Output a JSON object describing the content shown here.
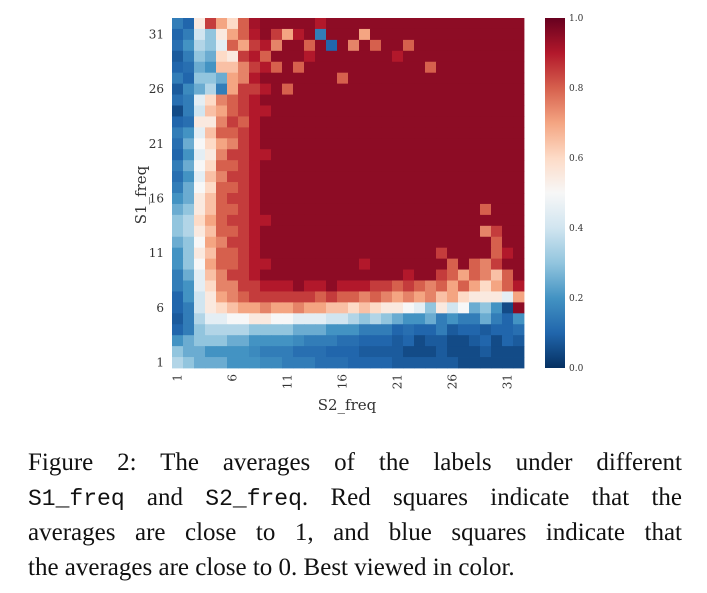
{
  "chart_data": {
    "type": "heatmap",
    "xlabel": "S2_freq",
    "ylabel": "S1_freq",
    "x_range": [
      1,
      32
    ],
    "y_range": [
      1,
      32
    ],
    "x_ticks": [
      "1",
      "6",
      "11",
      "16",
      "21",
      "26",
      "31"
    ],
    "y_ticks": [
      "1",
      "6",
      "11",
      "16",
      "21",
      "26",
      "31"
    ],
    "colorbar_ticks": [
      "0.0",
      "0.2",
      "0.4",
      "0.6",
      "0.8",
      "1.0"
    ],
    "value_range": [
      0.0,
      1.0
    ],
    "colormap": "RdBu_r",
    "grid": false,
    "colorbar_position": "right",
    "description_of_pattern": "",
    "rows_top_to_bottom": [
      [
        0.15,
        0.1,
        0.55,
        0.85,
        0.7,
        0.6,
        0.8,
        0.92,
        0.95,
        0.95,
        0.95,
        0.95,
        0.95,
        0.9,
        0.95,
        0.95,
        0.95,
        0.95,
        0.95,
        0.95,
        0.95,
        0.95,
        0.95,
        0.95,
        0.95,
        0.95,
        0.95,
        0.95,
        0.95,
        0.95,
        0.95,
        0.95
      ],
      [
        0.1,
        0.15,
        0.4,
        0.3,
        0.55,
        0.7,
        0.8,
        0.9,
        0.95,
        0.85,
        0.7,
        0.9,
        0.95,
        0.15,
        0.95,
        0.95,
        0.95,
        0.7,
        0.95,
        0.95,
        0.95,
        0.95,
        0.95,
        0.95,
        0.95,
        0.95,
        0.95,
        0.95,
        0.95,
        0.95,
        0.95,
        0.95
      ],
      [
        0.12,
        0.2,
        0.35,
        0.3,
        0.45,
        0.8,
        0.7,
        0.85,
        0.9,
        0.75,
        0.95,
        0.95,
        0.8,
        0.95,
        0.1,
        0.95,
        0.75,
        0.95,
        0.8,
        0.95,
        0.95,
        0.8,
        0.95,
        0.95,
        0.95,
        0.95,
        0.95,
        0.95,
        0.95,
        0.95,
        0.95,
        0.95
      ],
      [
        0.08,
        0.15,
        0.3,
        0.25,
        0.6,
        0.55,
        0.85,
        0.9,
        0.8,
        0.95,
        0.95,
        0.95,
        0.9,
        0.95,
        0.95,
        0.95,
        0.95,
        0.95,
        0.95,
        0.95,
        0.9,
        0.95,
        0.95,
        0.95,
        0.95,
        0.95,
        0.95,
        0.95,
        0.95,
        0.95,
        0.95,
        0.95
      ],
      [
        0.1,
        0.12,
        0.25,
        0.2,
        0.65,
        0.65,
        0.75,
        0.85,
        0.9,
        0.8,
        0.95,
        0.8,
        0.95,
        0.95,
        0.95,
        0.95,
        0.95,
        0.95,
        0.95,
        0.95,
        0.95,
        0.95,
        0.95,
        0.8,
        0.95,
        0.95,
        0.95,
        0.95,
        0.95,
        0.95,
        0.95,
        0.95
      ],
      [
        0.15,
        0.1,
        0.3,
        0.3,
        0.25,
        0.7,
        0.75,
        0.9,
        0.95,
        0.95,
        0.95,
        0.95,
        0.95,
        0.95,
        0.95,
        0.8,
        0.95,
        0.95,
        0.95,
        0.95,
        0.95,
        0.95,
        0.95,
        0.95,
        0.95,
        0.95,
        0.95,
        0.95,
        0.95,
        0.95,
        0.95,
        0.95
      ],
      [
        0.08,
        0.18,
        0.25,
        0.35,
        0.15,
        0.7,
        0.85,
        0.85,
        0.9,
        0.95,
        0.8,
        0.95,
        0.95,
        0.95,
        0.95,
        0.95,
        0.95,
        0.95,
        0.95,
        0.95,
        0.95,
        0.95,
        0.95,
        0.95,
        0.95,
        0.95,
        0.95,
        0.95,
        0.95,
        0.95,
        0.95,
        0.95
      ],
      [
        0.12,
        0.15,
        0.45,
        0.6,
        0.75,
        0.8,
        0.85,
        0.9,
        0.95,
        0.95,
        0.95,
        0.95,
        0.95,
        0.95,
        0.95,
        0.95,
        0.95,
        0.95,
        0.95,
        0.95,
        0.95,
        0.95,
        0.95,
        0.95,
        0.95,
        0.95,
        0.95,
        0.95,
        0.95,
        0.95,
        0.95,
        0.95
      ],
      [
        0.05,
        0.15,
        0.4,
        0.65,
        0.7,
        0.8,
        0.85,
        0.9,
        0.9,
        0.95,
        0.95,
        0.95,
        0.95,
        0.95,
        0.95,
        0.95,
        0.95,
        0.95,
        0.95,
        0.95,
        0.95,
        0.95,
        0.95,
        0.95,
        0.95,
        0.95,
        0.95,
        0.95,
        0.95,
        0.95,
        0.95,
        0.95
      ],
      [
        0.1,
        0.12,
        0.55,
        0.55,
        0.75,
        0.85,
        0.8,
        0.9,
        0.95,
        0.95,
        0.95,
        0.95,
        0.95,
        0.95,
        0.95,
        0.95,
        0.95,
        0.95,
        0.95,
        0.95,
        0.95,
        0.95,
        0.95,
        0.95,
        0.95,
        0.95,
        0.95,
        0.95,
        0.95,
        0.95,
        0.95,
        0.95
      ],
      [
        0.15,
        0.2,
        0.45,
        0.65,
        0.8,
        0.8,
        0.85,
        0.9,
        0.95,
        0.95,
        0.95,
        0.95,
        0.95,
        0.95,
        0.95,
        0.95,
        0.95,
        0.95,
        0.95,
        0.95,
        0.95,
        0.95,
        0.95,
        0.95,
        0.95,
        0.95,
        0.95,
        0.95,
        0.95,
        0.95,
        0.95,
        0.95
      ],
      [
        0.12,
        0.25,
        0.5,
        0.6,
        0.7,
        0.75,
        0.85,
        0.9,
        0.95,
        0.95,
        0.95,
        0.95,
        0.95,
        0.95,
        0.95,
        0.95,
        0.95,
        0.95,
        0.95,
        0.95,
        0.95,
        0.95,
        0.95,
        0.95,
        0.95,
        0.95,
        0.95,
        0.95,
        0.95,
        0.95,
        0.95,
        0.95
      ],
      [
        0.1,
        0.2,
        0.45,
        0.55,
        0.75,
        0.85,
        0.85,
        0.9,
        0.9,
        0.95,
        0.95,
        0.95,
        0.95,
        0.95,
        0.95,
        0.95,
        0.95,
        0.95,
        0.95,
        0.95,
        0.95,
        0.95,
        0.95,
        0.95,
        0.95,
        0.95,
        0.95,
        0.95,
        0.95,
        0.95,
        0.95,
        0.95
      ],
      [
        0.15,
        0.25,
        0.5,
        0.6,
        0.8,
        0.8,
        0.85,
        0.9,
        0.95,
        0.95,
        0.95,
        0.95,
        0.95,
        0.95,
        0.95,
        0.95,
        0.95,
        0.95,
        0.95,
        0.95,
        0.95,
        0.95,
        0.95,
        0.95,
        0.95,
        0.95,
        0.95,
        0.95,
        0.95,
        0.95,
        0.95,
        0.95
      ],
      [
        0.12,
        0.2,
        0.45,
        0.65,
        0.75,
        0.85,
        0.85,
        0.9,
        0.95,
        0.95,
        0.95,
        0.95,
        0.95,
        0.95,
        0.95,
        0.95,
        0.95,
        0.95,
        0.95,
        0.95,
        0.95,
        0.95,
        0.95,
        0.95,
        0.95,
        0.95,
        0.95,
        0.95,
        0.95,
        0.95,
        0.95,
        0.95
      ],
      [
        0.15,
        0.25,
        0.5,
        0.6,
        0.8,
        0.8,
        0.85,
        0.9,
        0.95,
        0.95,
        0.95,
        0.95,
        0.95,
        0.95,
        0.95,
        0.95,
        0.95,
        0.95,
        0.95,
        0.95,
        0.95,
        0.95,
        0.95,
        0.95,
        0.95,
        0.95,
        0.95,
        0.95,
        0.95,
        0.95,
        0.95,
        0.95
      ],
      [
        0.2,
        0.25,
        0.55,
        0.65,
        0.8,
        0.85,
        0.85,
        0.9,
        0.95,
        0.95,
        0.95,
        0.95,
        0.95,
        0.95,
        0.95,
        0.95,
        0.95,
        0.95,
        0.95,
        0.95,
        0.95,
        0.95,
        0.95,
        0.95,
        0.95,
        0.95,
        0.95,
        0.95,
        0.95,
        0.95,
        0.95,
        0.95
      ],
      [
        0.25,
        0.3,
        0.55,
        0.65,
        0.8,
        0.8,
        0.85,
        0.9,
        0.95,
        0.95,
        0.95,
        0.95,
        0.95,
        0.95,
        0.95,
        0.95,
        0.95,
        0.95,
        0.95,
        0.95,
        0.95,
        0.95,
        0.95,
        0.95,
        0.95,
        0.95,
        0.95,
        0.95,
        0.8,
        0.95,
        0.95,
        0.95
      ],
      [
        0.3,
        0.35,
        0.6,
        0.7,
        0.8,
        0.85,
        0.85,
        0.9,
        0.9,
        0.95,
        0.95,
        0.95,
        0.95,
        0.95,
        0.95,
        0.95,
        0.95,
        0.95,
        0.95,
        0.95,
        0.95,
        0.95,
        0.95,
        0.95,
        0.95,
        0.95,
        0.95,
        0.95,
        0.95,
        0.95,
        0.95,
        0.95
      ],
      [
        0.3,
        0.35,
        0.55,
        0.65,
        0.8,
        0.8,
        0.85,
        0.9,
        0.95,
        0.95,
        0.95,
        0.95,
        0.95,
        0.95,
        0.95,
        0.95,
        0.95,
        0.95,
        0.95,
        0.95,
        0.95,
        0.95,
        0.95,
        0.95,
        0.95,
        0.95,
        0.95,
        0.95,
        0.75,
        0.85,
        0.95,
        0.95
      ],
      [
        0.25,
        0.3,
        0.5,
        0.7,
        0.75,
        0.85,
        0.85,
        0.9,
        0.95,
        0.95,
        0.95,
        0.95,
        0.95,
        0.95,
        0.95,
        0.95,
        0.95,
        0.95,
        0.95,
        0.95,
        0.95,
        0.95,
        0.95,
        0.95,
        0.95,
        0.95,
        0.95,
        0.95,
        0.95,
        0.8,
        0.95,
        0.95
      ],
      [
        0.2,
        0.3,
        0.55,
        0.65,
        0.8,
        0.8,
        0.85,
        0.9,
        0.95,
        0.95,
        0.95,
        0.95,
        0.95,
        0.95,
        0.95,
        0.95,
        0.95,
        0.95,
        0.95,
        0.95,
        0.95,
        0.95,
        0.95,
        0.95,
        0.85,
        0.95,
        0.95,
        0.95,
        0.95,
        0.8,
        0.9,
        0.95
      ],
      [
        0.2,
        0.3,
        0.5,
        0.7,
        0.8,
        0.8,
        0.85,
        0.9,
        0.9,
        0.95,
        0.95,
        0.95,
        0.95,
        0.95,
        0.95,
        0.95,
        0.95,
        0.9,
        0.95,
        0.95,
        0.95,
        0.95,
        0.95,
        0.95,
        0.95,
        0.8,
        0.95,
        0.8,
        0.75,
        0.85,
        0.95,
        0.95
      ],
      [
        0.15,
        0.25,
        0.45,
        0.65,
        0.75,
        0.85,
        0.85,
        0.9,
        0.95,
        0.95,
        0.95,
        0.95,
        0.95,
        0.95,
        0.95,
        0.95,
        0.95,
        0.95,
        0.95,
        0.95,
        0.95,
        0.9,
        0.95,
        0.95,
        0.85,
        0.8,
        0.7,
        0.8,
        0.75,
        0.65,
        0.8,
        0.95
      ],
      [
        0.15,
        0.2,
        0.45,
        0.6,
        0.75,
        0.75,
        0.85,
        0.85,
        0.9,
        0.9,
        0.9,
        0.95,
        0.9,
        0.9,
        0.95,
        0.9,
        0.9,
        0.9,
        0.85,
        0.85,
        0.8,
        0.85,
        0.8,
        0.75,
        0.8,
        0.7,
        0.8,
        0.7,
        0.6,
        0.7,
        0.8,
        0.9
      ],
      [
        0.1,
        0.2,
        0.4,
        0.55,
        0.7,
        0.75,
        0.8,
        0.85,
        0.85,
        0.85,
        0.85,
        0.85,
        0.85,
        0.8,
        0.85,
        0.8,
        0.8,
        0.75,
        0.8,
        0.75,
        0.7,
        0.75,
        0.7,
        0.75,
        0.65,
        0.7,
        0.6,
        0.55,
        0.55,
        0.55,
        0.45,
        0.7
      ],
      [
        0.1,
        0.15,
        0.4,
        0.55,
        0.6,
        0.65,
        0.7,
        0.7,
        0.75,
        0.7,
        0.7,
        0.75,
        0.7,
        0.7,
        0.65,
        0.65,
        0.6,
        0.65,
        0.6,
        0.55,
        0.55,
        0.5,
        0.45,
        0.3,
        0.55,
        0.4,
        0.5,
        0.25,
        0.3,
        0.2,
        0.05,
        0.95
      ],
      [
        0.08,
        0.15,
        0.35,
        0.45,
        0.45,
        0.5,
        0.5,
        0.55,
        0.55,
        0.5,
        0.5,
        0.45,
        0.45,
        0.45,
        0.4,
        0.4,
        0.35,
        0.3,
        0.35,
        0.3,
        0.25,
        0.2,
        0.2,
        0.25,
        0.15,
        0.2,
        0.15,
        0.15,
        0.25,
        0.15,
        0.1,
        0.2
      ],
      [
        0.1,
        0.15,
        0.3,
        0.35,
        0.35,
        0.35,
        0.35,
        0.3,
        0.3,
        0.3,
        0.3,
        0.25,
        0.25,
        0.25,
        0.2,
        0.2,
        0.2,
        0.15,
        0.15,
        0.15,
        0.1,
        0.12,
        0.1,
        0.1,
        0.15,
        0.08,
        0.1,
        0.1,
        0.08,
        0.1,
        0.1,
        0.12
      ],
      [
        0.2,
        0.25,
        0.3,
        0.3,
        0.3,
        0.25,
        0.25,
        0.2,
        0.2,
        0.2,
        0.2,
        0.18,
        0.15,
        0.15,
        0.15,
        0.12,
        0.12,
        0.1,
        0.1,
        0.1,
        0.08,
        0.1,
        0.05,
        0.08,
        0.08,
        0.05,
        0.05,
        0.08,
        0.1,
        0.05,
        0.1,
        0.08
      ],
      [
        0.3,
        0.25,
        0.25,
        0.2,
        0.2,
        0.2,
        0.2,
        0.18,
        0.15,
        0.15,
        0.15,
        0.12,
        0.12,
        0.12,
        0.1,
        0.1,
        0.1,
        0.08,
        0.08,
        0.08,
        0.08,
        0.05,
        0.05,
        0.05,
        0.08,
        0.05,
        0.05,
        0.05,
        0.08,
        0.05,
        0.05,
        0.05
      ],
      [
        0.35,
        0.3,
        0.25,
        0.25,
        0.25,
        0.2,
        0.2,
        0.2,
        0.18,
        0.18,
        0.15,
        0.15,
        0.15,
        0.12,
        0.12,
        0.12,
        0.1,
        0.1,
        0.1,
        0.1,
        0.08,
        0.08,
        0.08,
        0.08,
        0.08,
        0.08,
        0.05,
        0.05,
        0.05,
        0.05,
        0.05,
        0.05
      ]
    ]
  },
  "caption": {
    "line1": "Figure 2:  The averages of the labels under different",
    "line2_mono_a": "S1_freq",
    "line2_mid": " and ",
    "line2_mono_b": "S2_freq",
    "line2_rest": ". Red squares indicate that the",
    "line3": "averages are close to 1, and blue squares indicate that",
    "line4": "the averages are close to 0. Best viewed in color."
  }
}
